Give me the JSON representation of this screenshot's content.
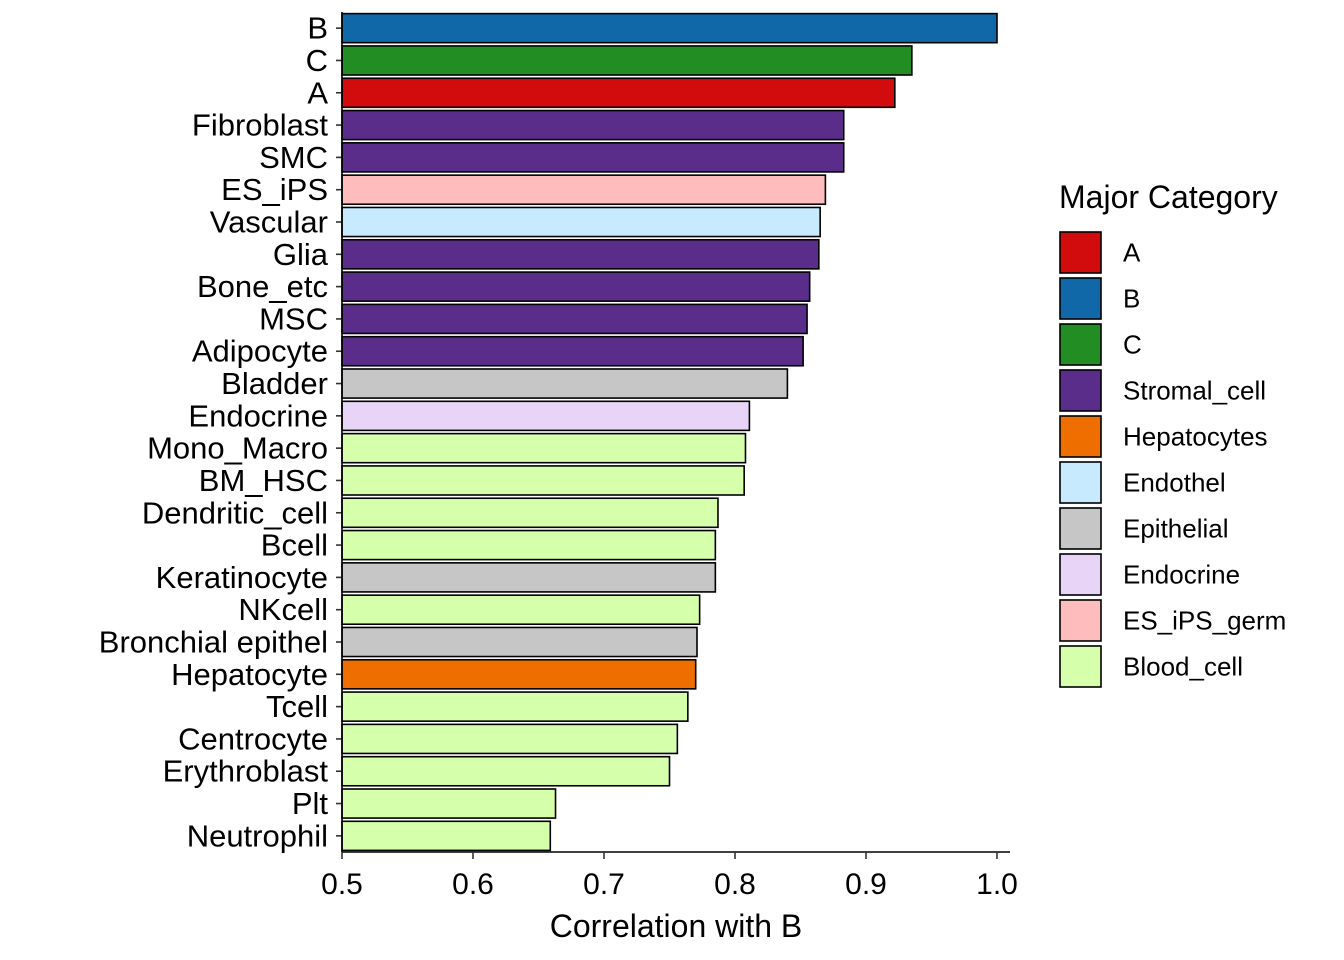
{
  "chart_data": {
    "type": "bar",
    "orientation": "horizontal",
    "xlabel": "Correlation with B",
    "ylabel": "",
    "xlim": [
      0.5,
      1.0
    ],
    "x_ticks": [
      "0.5",
      "0.6",
      "0.7",
      "0.8",
      "0.9",
      "1.0"
    ],
    "grid": false,
    "legend": {
      "title": "Major Category",
      "position": "right",
      "entries": [
        {
          "name": "A",
          "color": "#d20c0c"
        },
        {
          "name": "B",
          "color": "#1068a8"
        },
        {
          "name": "C",
          "color": "#228d22"
        },
        {
          "name": "Stromal_cell",
          "color": "#5b2d8a"
        },
        {
          "name": "Hepatocytes",
          "color": "#ee6e00"
        },
        {
          "name": "Endothel",
          "color": "#c8eaff"
        },
        {
          "name": "Epithelial",
          "color": "#c6c6c6"
        },
        {
          "name": "Endocrine",
          "color": "#e8d4f6"
        },
        {
          "name": "ES_iPS_germ",
          "color": "#ffbcbc"
        },
        {
          "name": "Blood_cell",
          "color": "#d6ffab"
        }
      ]
    },
    "bars": [
      {
        "category": "B",
        "value": 1.0,
        "group": "B"
      },
      {
        "category": "C",
        "value": 0.935,
        "group": "C"
      },
      {
        "category": "A",
        "value": 0.922,
        "group": "A"
      },
      {
        "category": "Fibroblast",
        "value": 0.883,
        "group": "Stromal_cell"
      },
      {
        "category": "SMC",
        "value": 0.883,
        "group": "Stromal_cell"
      },
      {
        "category": "ES_iPS",
        "value": 0.869,
        "group": "ES_iPS_germ"
      },
      {
        "category": "Vascular",
        "value": 0.865,
        "group": "Endothel"
      },
      {
        "category": "Glia",
        "value": 0.864,
        "group": "Stromal_cell"
      },
      {
        "category": "Bone_etc",
        "value": 0.857,
        "group": "Stromal_cell"
      },
      {
        "category": "MSC",
        "value": 0.855,
        "group": "Stromal_cell"
      },
      {
        "category": "Adipocyte",
        "value": 0.852,
        "group": "Stromal_cell"
      },
      {
        "category": "Bladder",
        "value": 0.84,
        "group": "Epithelial"
      },
      {
        "category": "Endocrine",
        "value": 0.811,
        "group": "Endocrine"
      },
      {
        "category": "Mono_Macro",
        "value": 0.808,
        "group": "Blood_cell"
      },
      {
        "category": "BM_HSC",
        "value": 0.807,
        "group": "Blood_cell"
      },
      {
        "category": "Dendritic_cell",
        "value": 0.787,
        "group": "Blood_cell"
      },
      {
        "category": "Bcell",
        "value": 0.785,
        "group": "Blood_cell"
      },
      {
        "category": "Keratinocyte",
        "value": 0.785,
        "group": "Epithelial"
      },
      {
        "category": "NKcell",
        "value": 0.773,
        "group": "Blood_cell"
      },
      {
        "category": "Bronchial epithel",
        "value": 0.771,
        "group": "Epithelial"
      },
      {
        "category": "Hepatocyte",
        "value": 0.77,
        "group": "Hepatocytes"
      },
      {
        "category": "Tcell",
        "value": 0.764,
        "group": "Blood_cell"
      },
      {
        "category": "Centrocyte",
        "value": 0.756,
        "group": "Blood_cell"
      },
      {
        "category": "Erythroblast",
        "value": 0.75,
        "group": "Blood_cell"
      },
      {
        "category": "Plt",
        "value": 0.663,
        "group": "Blood_cell"
      },
      {
        "category": "Neutrophil",
        "value": 0.659,
        "group": "Blood_cell"
      }
    ]
  }
}
